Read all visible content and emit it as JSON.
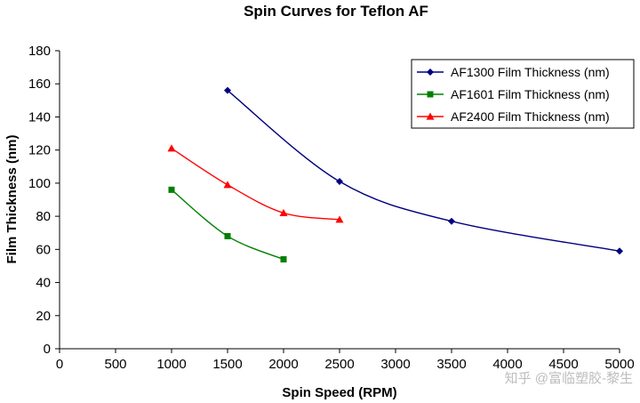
{
  "chart_data": {
    "type": "line",
    "title": "Spin Curves for Teflon AF",
    "xlabel": "Spin Speed (RPM)",
    "ylabel": "Film Thickness (nm)",
    "xlim": [
      0,
      5000
    ],
    "ylim": [
      0,
      180
    ],
    "xticks": [
      0,
      500,
      1000,
      1500,
      2000,
      2500,
      3000,
      3500,
      4000,
      4500,
      5000
    ],
    "yticks": [
      0,
      20,
      40,
      60,
      80,
      100,
      120,
      140,
      160,
      180
    ],
    "grid": false,
    "legend_position": "top-right",
    "series": [
      {
        "name": "AF1300 Film Thickness (nm)",
        "color": "#000080",
        "marker": "diamond",
        "x": [
          1500,
          2500,
          3500,
          5000
        ],
        "y": [
          156,
          101,
          77,
          59
        ]
      },
      {
        "name": "AF1601 Film Thickness (nm)",
        "color": "#008000",
        "marker": "square",
        "x": [
          1000,
          1500,
          2000
        ],
        "y": [
          96,
          68,
          54
        ]
      },
      {
        "name": "AF2400 Film Thickness (nm)",
        "color": "#ff0000",
        "marker": "triangle",
        "x": [
          1000,
          1500,
          2000,
          2500
        ],
        "y": [
          121,
          99,
          82,
          78
        ]
      }
    ]
  },
  "watermark": "知乎 @富临塑胶-黎生"
}
